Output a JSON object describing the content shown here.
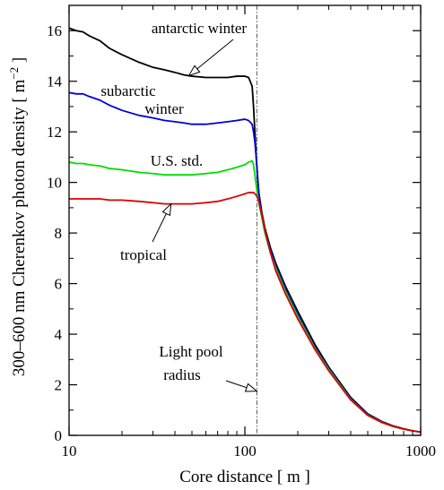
{
  "chart_data": {
    "type": "line",
    "xscale": "log",
    "xlim": [
      10,
      1000
    ],
    "ylim": [
      0,
      17
    ],
    "xlabel": "Core distance  [ m ]",
    "ylabel": "300–600 nm Cherenkov photon density  [ m",
    "ylabel_sup": "−2",
    "ylabel_end": " ]",
    "x_ticks": [
      10,
      100,
      1000
    ],
    "x_tick_labels": [
      "10",
      "100",
      "1000"
    ],
    "y_ticks": [
      0,
      2,
      4,
      6,
      8,
      10,
      12,
      14,
      16
    ],
    "y_tick_labels": [
      "0",
      "2",
      "4",
      "6",
      "8",
      "10",
      "12",
      "14",
      "16"
    ],
    "grid": false,
    "reference_line": {
      "x": 117,
      "style": "dash-dot"
    },
    "series": [
      {
        "name": "antarctic winter",
        "color": "#000000",
        "x": [
          10,
          11,
          12,
          13,
          15,
          17,
          20,
          25,
          30,
          35,
          40,
          45,
          50,
          60,
          70,
          80,
          90,
          100,
          105,
          110,
          112,
          114,
          116,
          118,
          120,
          125,
          130,
          140,
          150,
          170,
          200,
          250,
          300,
          400,
          500,
          600,
          700,
          800,
          900,
          1000
        ],
        "y": [
          16.1,
          16.0,
          15.95,
          15.8,
          15.6,
          15.3,
          15.05,
          14.75,
          14.55,
          14.45,
          14.35,
          14.25,
          14.2,
          14.15,
          14.15,
          14.15,
          14.2,
          14.2,
          14.15,
          13.8,
          13.0,
          12.0,
          11.0,
          10.2,
          9.6,
          8.8,
          8.2,
          7.4,
          6.8,
          5.9,
          4.9,
          3.6,
          2.7,
          1.5,
          0.85,
          0.55,
          0.37,
          0.26,
          0.18,
          0.13
        ]
      },
      {
        "name": "subarctic winter",
        "color": "#0000dd",
        "x": [
          10,
          11,
          12,
          13,
          15,
          17,
          20,
          25,
          30,
          35,
          40,
          45,
          50,
          60,
          70,
          80,
          90,
          100,
          105,
          110,
          112,
          114,
          116,
          118,
          120,
          125,
          130,
          140,
          150,
          170,
          200,
          250,
          300,
          400,
          500,
          600,
          700,
          800,
          900,
          1000
        ],
        "y": [
          13.55,
          13.5,
          13.5,
          13.4,
          13.25,
          13.05,
          12.85,
          12.65,
          12.55,
          12.45,
          12.4,
          12.35,
          12.3,
          12.3,
          12.35,
          12.4,
          12.45,
          12.5,
          12.45,
          12.3,
          12.0,
          11.6,
          11.0,
          10.3,
          9.6,
          8.7,
          8.1,
          7.3,
          6.7,
          5.8,
          4.8,
          3.5,
          2.65,
          1.45,
          0.82,
          0.53,
          0.36,
          0.25,
          0.18,
          0.13
        ]
      },
      {
        "name": "U.S. std.",
        "color": "#00dd00",
        "x": [
          10,
          11,
          12,
          13,
          15,
          17,
          20,
          25,
          30,
          35,
          40,
          45,
          50,
          60,
          70,
          80,
          90,
          100,
          105,
          110,
          112,
          114,
          116,
          118,
          120,
          125,
          130,
          140,
          150,
          170,
          200,
          250,
          300,
          400,
          500,
          600,
          700,
          800,
          900,
          1000
        ],
        "y": [
          10.8,
          10.75,
          10.75,
          10.7,
          10.65,
          10.55,
          10.5,
          10.4,
          10.35,
          10.3,
          10.3,
          10.3,
          10.3,
          10.35,
          10.4,
          10.5,
          10.6,
          10.7,
          10.8,
          10.85,
          10.7,
          10.3,
          9.9,
          9.5,
          9.2,
          8.6,
          8.0,
          7.2,
          6.6,
          5.7,
          4.7,
          3.45,
          2.6,
          1.42,
          0.8,
          0.52,
          0.35,
          0.25,
          0.18,
          0.13
        ]
      },
      {
        "name": "tropical",
        "color": "#dd0000",
        "x": [
          10,
          11,
          12,
          13,
          15,
          17,
          20,
          25,
          30,
          35,
          40,
          45,
          50,
          60,
          70,
          80,
          90,
          100,
          105,
          110,
          112,
          114,
          116,
          118,
          120,
          125,
          130,
          140,
          150,
          170,
          200,
          250,
          300,
          400,
          500,
          600,
          700,
          800,
          900,
          1000
        ],
        "y": [
          9.35,
          9.35,
          9.35,
          9.35,
          9.35,
          9.3,
          9.3,
          9.25,
          9.2,
          9.15,
          9.15,
          9.15,
          9.15,
          9.2,
          9.25,
          9.35,
          9.45,
          9.55,
          9.6,
          9.6,
          9.6,
          9.55,
          9.5,
          9.4,
          9.25,
          8.7,
          8.1,
          7.2,
          6.5,
          5.6,
          4.6,
          3.4,
          2.55,
          1.4,
          0.79,
          0.51,
          0.35,
          0.25,
          0.18,
          0.13
        ]
      }
    ],
    "annotations": [
      {
        "lines": [
          "antarctic winter"
        ],
        "arrow_to": [
          48,
          14.22
        ]
      },
      {
        "lines": [
          "subarctic",
          "winter"
        ],
        "arrow_to": null
      },
      {
        "lines": [
          "U.S. std."
        ],
        "arrow_to": null
      },
      {
        "lines": [
          "tropical"
        ],
        "arrow_to": [
          38,
          9.15
        ]
      },
      {
        "lines": [
          "Light pool",
          "radius"
        ],
        "arrow_to": [
          117,
          1.75
        ]
      }
    ]
  }
}
